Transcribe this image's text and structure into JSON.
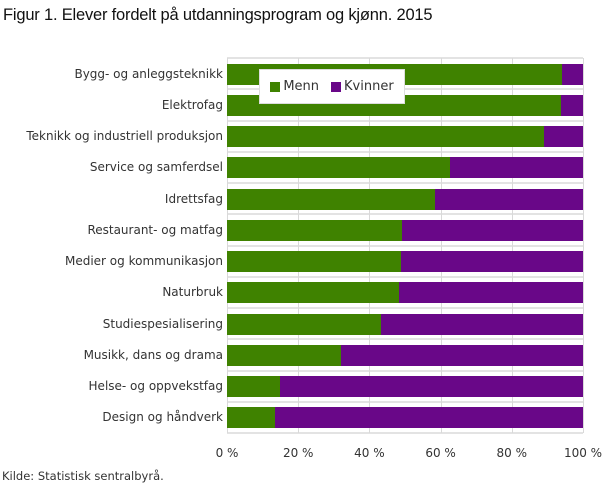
{
  "title": "Figur 1. Elever fordelt på utdanningsprogram og kjønn. 2015",
  "source": "Kilde: Statistisk sentralbyrå.",
  "colors": {
    "menn": "#3f8200",
    "kvinner": "#690788"
  },
  "legend": {
    "menn": "Menn",
    "kvinner": "Kvinner"
  },
  "xticks": [
    "0 %",
    "20 %",
    "40 %",
    "60 %",
    "80 %",
    "100 %"
  ],
  "chart_data": {
    "type": "bar",
    "orientation": "horizontal",
    "stacked": "percent",
    "title": "Figur 1. Elever fordelt på utdanningsprogram og kjønn. 2015",
    "xlabel": "",
    "ylabel": "",
    "xlim": [
      0,
      100
    ],
    "x_tick_labels": [
      "0 %",
      "20 %",
      "40 %",
      "60 %",
      "80 %",
      "100 %"
    ],
    "grid": true,
    "legend_position": "top-left inside plot",
    "categories": [
      "Bygg- og anleggsteknikk",
      "Elektrofag",
      "Teknikk og industriell produksjon",
      "Service og samferdsel",
      "Idrettsfag",
      "Restaurant- og matfag",
      "Medier og kommunikasjon",
      "Naturbruk",
      "Studiespesialisering",
      "Musikk, dans og drama",
      "Helse- og oppvekstfag",
      "Design og håndverk"
    ],
    "series": [
      {
        "name": "Menn",
        "color": "#3f8200",
        "values": [
          94.1,
          93.8,
          89.0,
          62.6,
          58.4,
          49.2,
          48.9,
          48.3,
          43.3,
          32.0,
          14.9,
          13.5
        ]
      },
      {
        "name": "Kvinner",
        "color": "#690788",
        "values": [
          5.9,
          6.2,
          11.0,
          37.4,
          41.6,
          50.8,
          51.1,
          51.7,
          56.7,
          68.0,
          85.1,
          86.5
        ]
      }
    ],
    "source": "Kilde: Statistisk sentralbyrå."
  }
}
